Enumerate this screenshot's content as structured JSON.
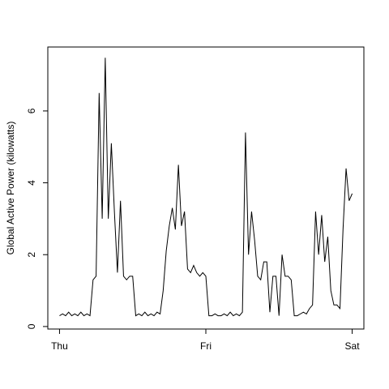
{
  "chart_data": {
    "type": "line",
    "y_label": "Global Active Power (kilowatts)",
    "x": [
      0,
      0.5,
      1,
      1.5,
      2,
      2.5,
      3,
      3.5,
      4,
      4.5,
      5,
      5.5,
      6,
      6.5,
      7,
      7.5,
      8,
      8.5,
      9,
      9.5,
      10,
      10.5,
      11,
      11.5,
      12,
      12.5,
      13,
      13.5,
      14,
      14.5,
      15,
      15.5,
      16,
      16.5,
      17,
      17.5,
      18,
      18.5,
      19,
      19.5,
      20,
      20.5,
      21,
      21.5,
      22,
      22.5,
      23,
      23.5,
      24,
      24.5,
      25,
      25.5,
      26,
      26.5,
      27,
      27.5,
      28,
      28.5,
      29,
      29.5,
      30,
      30.5,
      31,
      31.5,
      32,
      32.5,
      33,
      33.5,
      34,
      34.5,
      35,
      35.5,
      36,
      36.5,
      37,
      37.5,
      38,
      38.5,
      39,
      39.5,
      40,
      40.5,
      41,
      41.5,
      42,
      42.5,
      43,
      43.5,
      44,
      44.5,
      45,
      45.5,
      46,
      46.5,
      47,
      47.5,
      48
    ],
    "series": [
      {
        "color": "#000000",
        "values": [
          0.3,
          0.35,
          0.3,
          0.4,
          0.3,
          0.35,
          0.3,
          0.4,
          0.3,
          0.35,
          0.3,
          1.3,
          1.4,
          6.5,
          3.0,
          7.48,
          3.0,
          5.1,
          3.2,
          1.5,
          3.5,
          1.4,
          1.3,
          1.4,
          1.4,
          0.3,
          0.35,
          0.3,
          0.4,
          0.3,
          0.35,
          0.3,
          0.4,
          0.35,
          1.0,
          2.1,
          2.8,
          3.3,
          2.7,
          4.5,
          2.8,
          3.2,
          1.6,
          1.5,
          1.7,
          1.5,
          1.4,
          1.5,
          1.4,
          0.3,
          0.3,
          0.35,
          0.3,
          0.3,
          0.35,
          0.3,
          0.4,
          0.3,
          0.35,
          0.3,
          0.4,
          5.4,
          2.0,
          3.2,
          2.4,
          1.4,
          1.3,
          1.8,
          1.8,
          0.4,
          1.4,
          1.4,
          0.3,
          2.0,
          1.4,
          1.4,
          1.3,
          0.3,
          0.3,
          0.35,
          0.4,
          0.35,
          0.5,
          0.6,
          3.2,
          2.0,
          3.1,
          1.8,
          2.5,
          1.0,
          0.6,
          0.6,
          0.5,
          2.7,
          4.4,
          3.5,
          3.7
        ]
      }
    ],
    "xlim": [
      -1.92,
      49.92
    ],
    "xticks": [
      {
        "value": 0,
        "label": "Thu"
      },
      {
        "value": 24,
        "label": "Fri"
      },
      {
        "value": 48,
        "label": "Sat"
      }
    ],
    "ylim": [
      -0.07,
      7.78
    ],
    "yticks": [
      0,
      2,
      4,
      6
    ],
    "grid": false
  }
}
